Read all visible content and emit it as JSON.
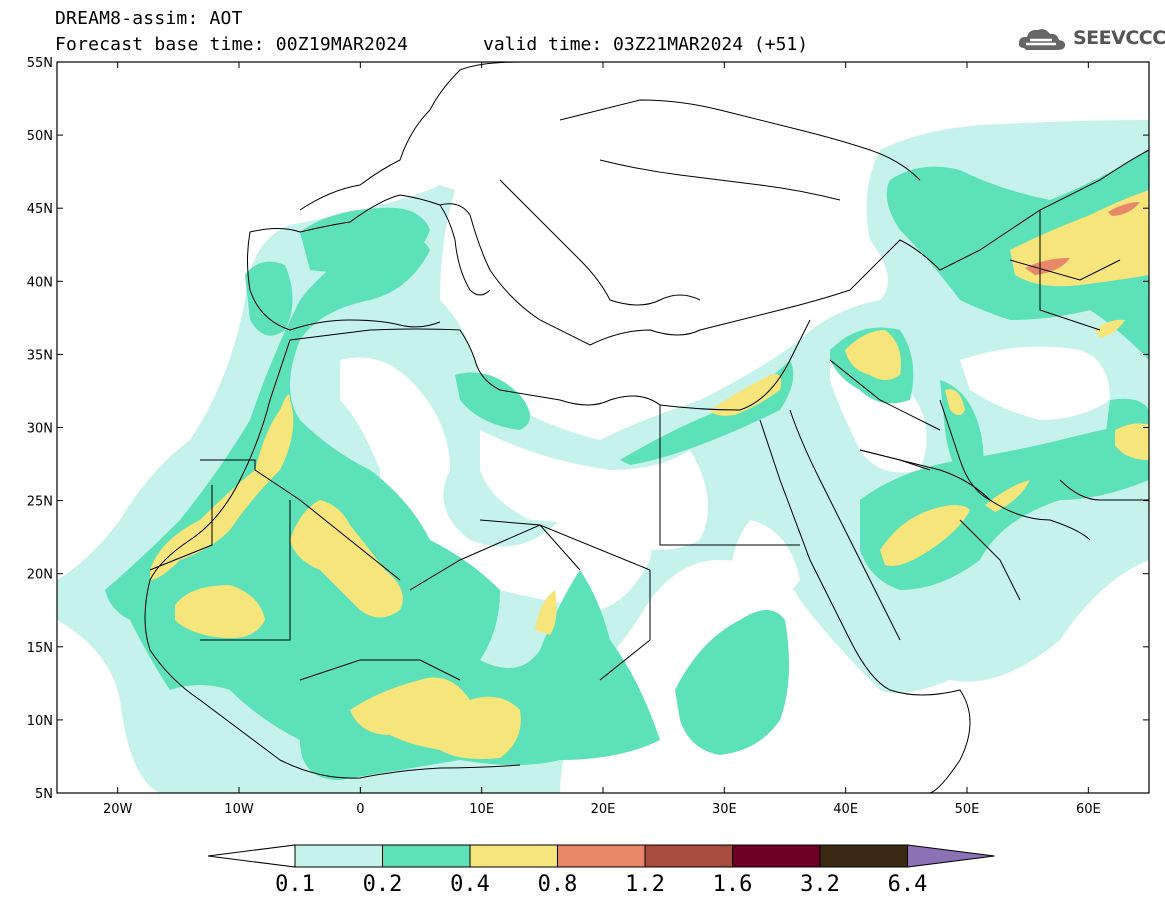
{
  "title": {
    "line1": "DREAM8-assim: AOT",
    "line2": "Forecast base time: 00Z19MAR2024",
    "valid": "valid time: 03Z21MAR2024 (+51)"
  },
  "logo": {
    "text": "SEEVCCC",
    "icon": "cloud-icon"
  },
  "map": {
    "lon_range": [
      -25,
      65
    ],
    "lat_range": [
      5,
      55
    ],
    "lat_ticks": [
      {
        "value": 55,
        "label": "55N"
      },
      {
        "value": 50,
        "label": "50N"
      },
      {
        "value": 45,
        "label": "45N"
      },
      {
        "value": 40,
        "label": "40N"
      },
      {
        "value": 35,
        "label": "35N"
      },
      {
        "value": 30,
        "label": "30N"
      },
      {
        "value": 25,
        "label": "25N"
      },
      {
        "value": 20,
        "label": "20N"
      },
      {
        "value": 15,
        "label": "15N"
      },
      {
        "value": 10,
        "label": "10N"
      },
      {
        "value": 5,
        "label": "5N"
      }
    ],
    "lon_ticks": [
      {
        "value": -20,
        "label": "20W"
      },
      {
        "value": -10,
        "label": "10W"
      },
      {
        "value": 0,
        "label": "0"
      },
      {
        "value": 10,
        "label": "10E"
      },
      {
        "value": 20,
        "label": "20E"
      },
      {
        "value": 30,
        "label": "30E"
      },
      {
        "value": 40,
        "label": "40E"
      },
      {
        "value": 50,
        "label": "50E"
      },
      {
        "value": 60,
        "label": "60E"
      }
    ]
  },
  "colorbar": {
    "levels": [
      "0.1",
      "0.2",
      "0.4",
      "0.8",
      "1.2",
      "1.6",
      "3.2",
      "6.4"
    ],
    "colors": [
      "#c6f2ec",
      "#5ce1b8",
      "#f5e57a",
      "#e8876a",
      "#a84c3e",
      "#6e0026",
      "#3a2a14",
      "#8c72b4"
    ],
    "low_color": "#ffffff"
  }
}
